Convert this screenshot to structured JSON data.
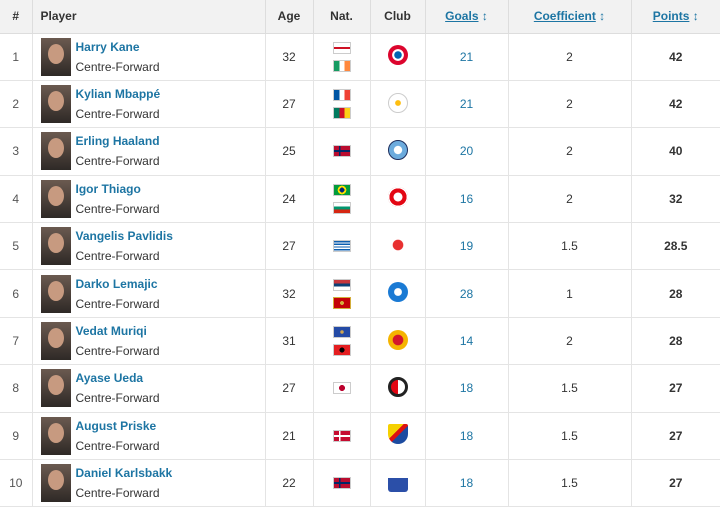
{
  "columns": {
    "rank": "#",
    "player": "Player",
    "age": "Age",
    "nat": "Nat.",
    "club": "Club",
    "goals": "Goals",
    "coefficient": "Coefficient",
    "points": "Points",
    "sort_icon": "↕"
  },
  "rows": [
    {
      "rank": "1",
      "name": "Harry Kane",
      "position": "Centre-Forward",
      "age": "32",
      "flags": [
        "england",
        "ireland"
      ],
      "club": "bayern-munich",
      "goals": "21",
      "coefficient": "2",
      "points": "42"
    },
    {
      "rank": "2",
      "name": "Kylian Mbappé",
      "position": "Centre-Forward",
      "age": "27",
      "flags": [
        "france",
        "cameroon"
      ],
      "club": "real-madrid",
      "goals": "21",
      "coefficient": "2",
      "points": "42"
    },
    {
      "rank": "3",
      "name": "Erling Haaland",
      "position": "Centre-Forward",
      "age": "25",
      "flags": [
        "norway"
      ],
      "club": "manchester-city",
      "goals": "20",
      "coefficient": "2",
      "points": "40"
    },
    {
      "rank": "4",
      "name": "Igor Thiago",
      "position": "Centre-Forward",
      "age": "24",
      "flags": [
        "brazil",
        "bulgaria"
      ],
      "club": "brentford",
      "goals": "16",
      "coefficient": "2",
      "points": "32"
    },
    {
      "rank": "5",
      "name": "Vangelis Pavlidis",
      "position": "Centre-Forward",
      "age": "27",
      "flags": [
        "greece"
      ],
      "club": "benfica",
      "goals": "19",
      "coefficient": "1.5",
      "points": "28.5"
    },
    {
      "rank": "6",
      "name": "Darko Lemajic",
      "position": "Centre-Forward",
      "age": "32",
      "flags": [
        "serbia",
        "montenegro"
      ],
      "club": "blue-club",
      "goals": "28",
      "coefficient": "1",
      "points": "28"
    },
    {
      "rank": "7",
      "name": "Vedat Muriqi",
      "position": "Centre-Forward",
      "age": "31",
      "flags": [
        "kosovo",
        "albania"
      ],
      "club": "mallorca",
      "goals": "14",
      "coefficient": "2",
      "points": "28"
    },
    {
      "rank": "8",
      "name": "Ayase Ueda",
      "position": "Centre-Forward",
      "age": "27",
      "flags": [
        "japan"
      ],
      "club": "feyenoord",
      "goals": "18",
      "coefficient": "1.5",
      "points": "27"
    },
    {
      "rank": "9",
      "name": "August Priske",
      "position": "Centre-Forward",
      "age": "21",
      "flags": [
        "denmark"
      ],
      "club": "djurgarden",
      "goals": "18",
      "coefficient": "1.5",
      "points": "27"
    },
    {
      "rank": "10",
      "name": "Daniel Karlsbakk",
      "position": "Centre-Forward",
      "age": "22",
      "flags": [
        "norway"
      ],
      "club": "white-blue-club",
      "goals": "18",
      "coefficient": "1.5",
      "points": "27"
    }
  ],
  "colors": {
    "link": "#1d75a3",
    "header_bg": "#f2f2f2"
  }
}
